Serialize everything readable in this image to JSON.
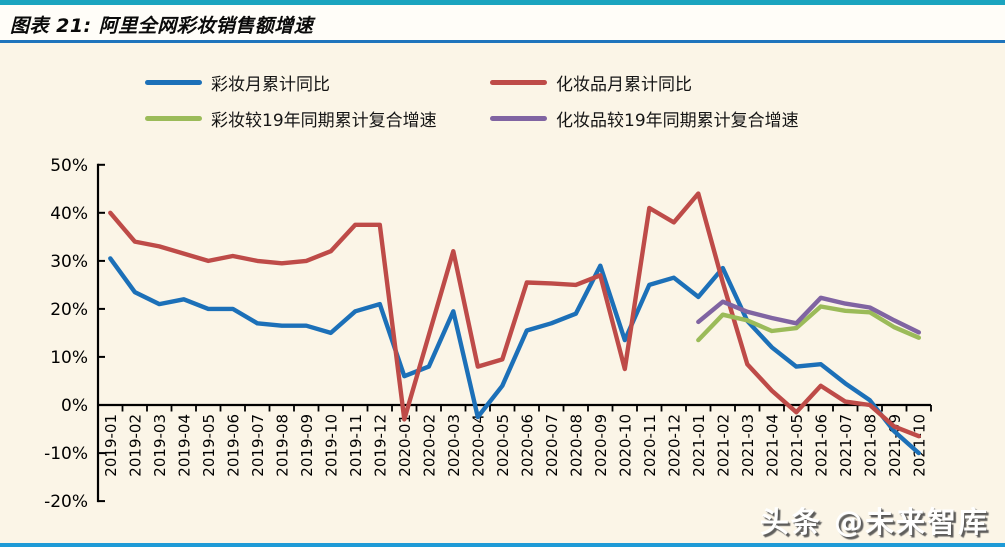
{
  "header": {
    "title": "图表 21:  阿里全网彩妆销售额增速"
  },
  "legend": [
    {
      "label": "彩妆月累计同比",
      "color": "#1c70b8"
    },
    {
      "label": "化妆品月累计同比",
      "color": "#be4b48"
    },
    {
      "label": "彩妆较19年同期累计复合增速",
      "color": "#9bbb59"
    },
    {
      "label": "化妆品较19年同期累计复合增速",
      "color": "#8064a2"
    }
  ],
  "watermark": "头条 @未来智库",
  "chart_data": {
    "type": "line",
    "title": "阿里全网彩妆销售额增速",
    "xlabel": "",
    "ylabel": "",
    "ylim": [
      -20,
      50
    ],
    "y_tick_step": 10,
    "y_tick_suffix": "%",
    "grid": false,
    "legend_position": "top",
    "categories": [
      "2019-01",
      "2019-02",
      "2019-03",
      "2019-04",
      "2019-05",
      "2019-06",
      "2019-07",
      "2019-08",
      "2019-09",
      "2019-10",
      "2019-11",
      "2019-12",
      "2020-01",
      "2020-02",
      "2020-03",
      "2020-04",
      "2020-05",
      "2020-06",
      "2020-07",
      "2020-08",
      "2020-09",
      "2020-10",
      "2020-11",
      "2020-12",
      "2021-01",
      "2021-02",
      "2021-03",
      "2021-04",
      "2021-05",
      "2021-06",
      "2021-07",
      "2021-08",
      "2021-09",
      "2021-10"
    ],
    "series": [
      {
        "name": "彩妆月累计同比",
        "color": "#1c70b8",
        "values": [
          30.5,
          23.5,
          21,
          22,
          20,
          20,
          17,
          16.5,
          16.5,
          15,
          19.5,
          21,
          6,
          8,
          19.5,
          -2.5,
          4,
          15.5,
          17,
          19,
          29,
          13.5,
          25,
          26.5,
          22.5,
          28.5,
          17.5,
          12,
          8,
          8.5,
          4.5,
          1,
          -5.5,
          -10
        ]
      },
      {
        "name": "化妆品月累计同比",
        "color": "#be4b48",
        "values": [
          40,
          34,
          33,
          31.5,
          30,
          31,
          30,
          29.5,
          30,
          32,
          37.5,
          37.5,
          -3,
          14.5,
          32,
          8,
          9.5,
          25.5,
          25.3,
          25,
          27,
          7.5,
          41,
          38,
          44,
          25.5,
          8.5,
          3,
          -1.5,
          4,
          0.7,
          0,
          -4.5,
          -6.5
        ]
      },
      {
        "name": "彩妆较19年同期累计复合增速",
        "color": "#9bbb59",
        "values": [
          null,
          null,
          null,
          null,
          null,
          null,
          null,
          null,
          null,
          null,
          null,
          null,
          null,
          null,
          null,
          null,
          null,
          null,
          null,
          null,
          null,
          null,
          null,
          null,
          13.5,
          18.8,
          17.6,
          15.4,
          16.0,
          20.5,
          19.6,
          19.3,
          16.2,
          14.0
        ]
      },
      {
        "name": "化妆品较19年同期累计复合增速",
        "color": "#8064a2",
        "values": [
          null,
          null,
          null,
          null,
          null,
          null,
          null,
          null,
          null,
          null,
          null,
          null,
          null,
          null,
          null,
          null,
          null,
          null,
          null,
          null,
          null,
          null,
          null,
          null,
          17.3,
          21.5,
          19.4,
          18.1,
          17.0,
          22.3,
          21.1,
          20.3,
          17.6,
          15.1
        ]
      }
    ]
  }
}
